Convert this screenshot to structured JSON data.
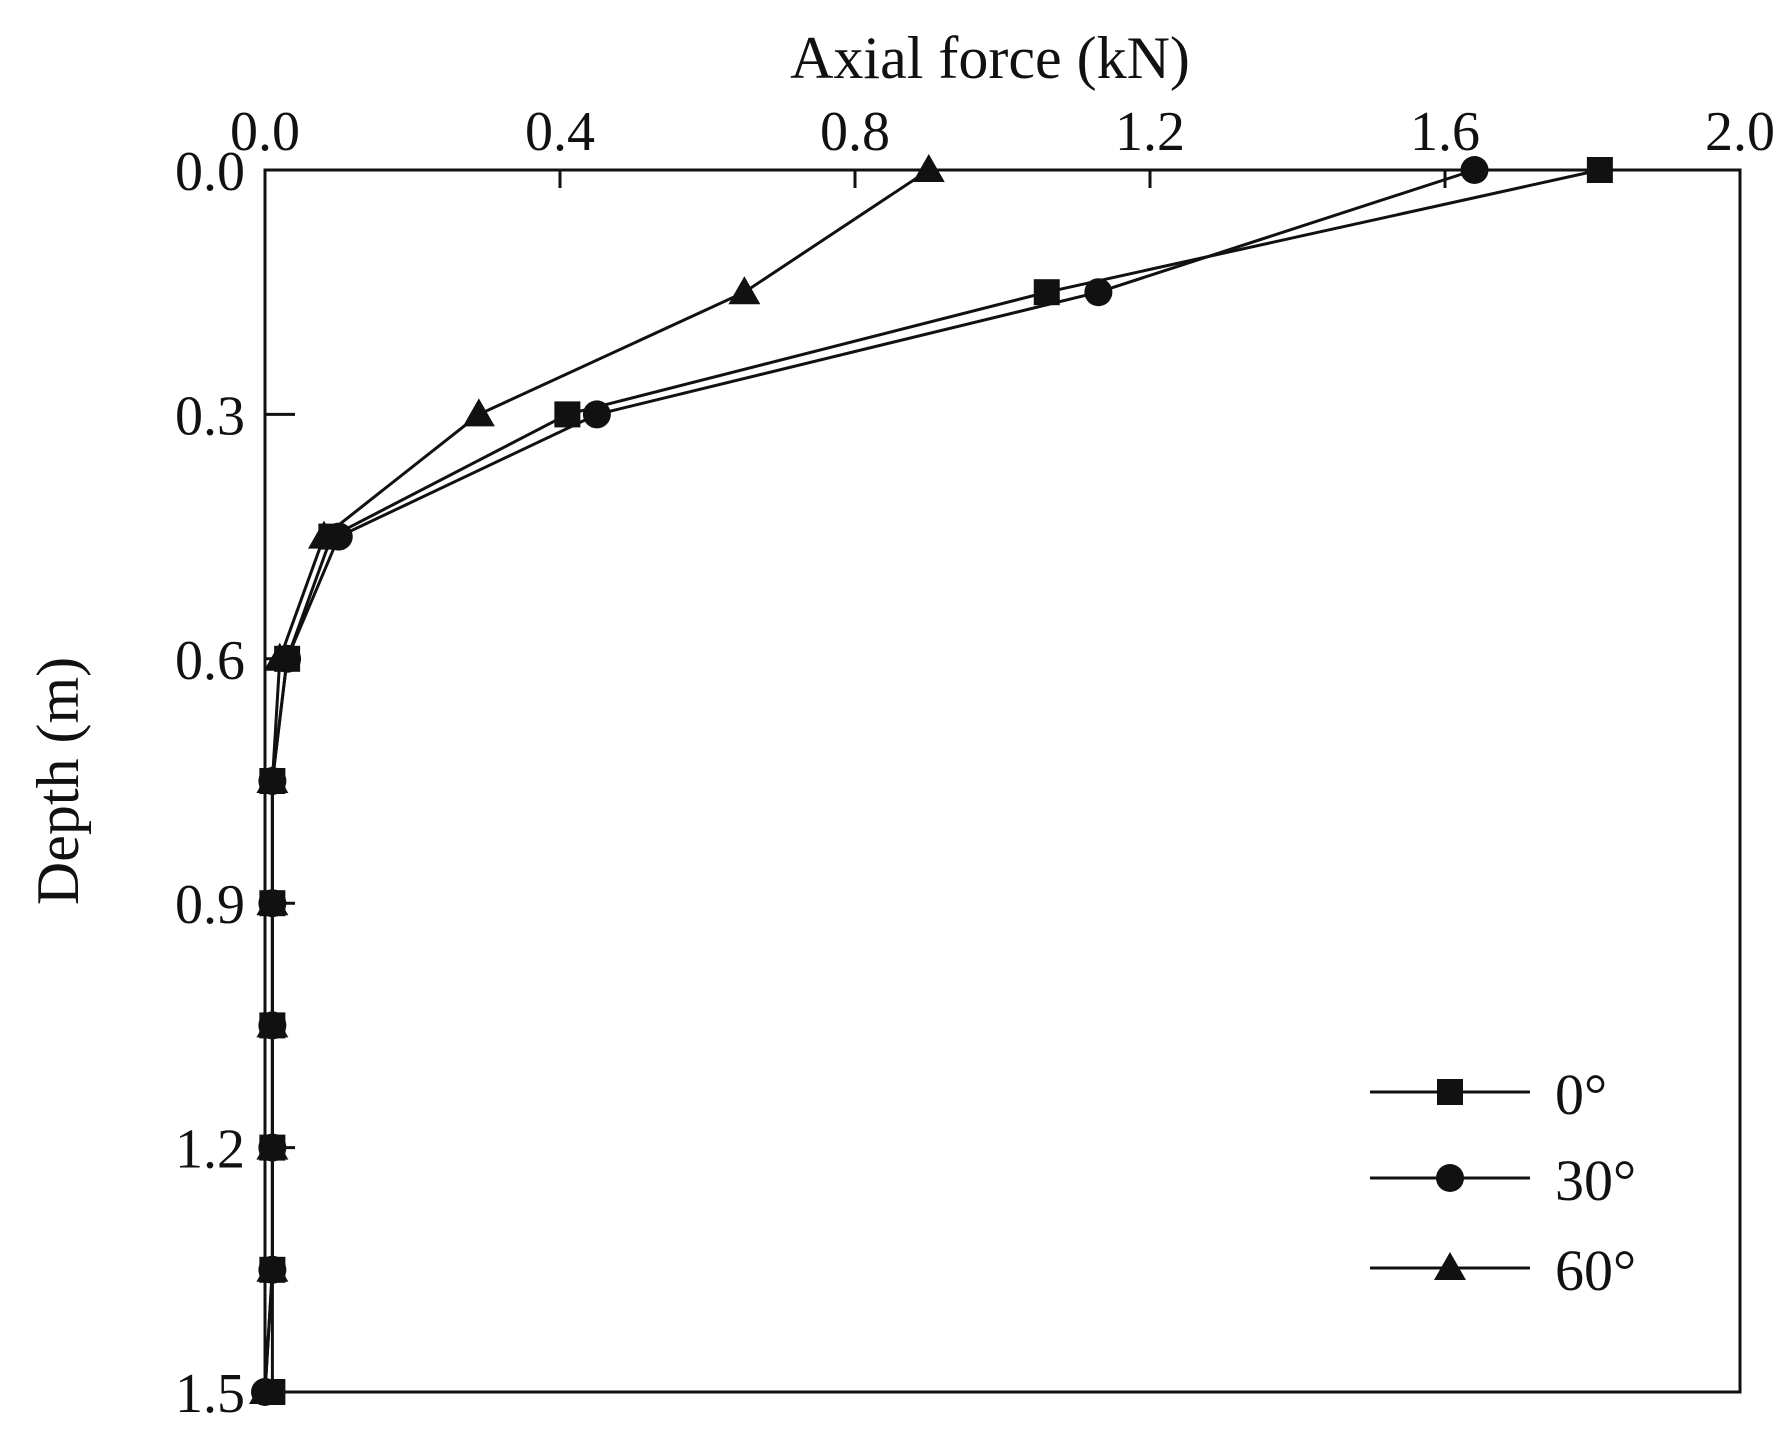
{
  "chart_data": {
    "type": "line",
    "title": "",
    "xlabel": "Axial force (kN)",
    "ylabel": "Depth (m)",
    "xlim": [
      0.0,
      2.0
    ],
    "ylim": [
      0.0,
      1.5
    ],
    "y_inverted": true,
    "x_axis_position": "top",
    "xticks": [
      "0.0",
      "0.4",
      "0.8",
      "1.2",
      "1.6",
      "2.0"
    ],
    "yticks": [
      "0.0",
      "0.3",
      "0.6",
      "0.9",
      "1.2",
      "1.5"
    ],
    "grid": false,
    "legend_position": "bottom-right",
    "line_color": "#111111",
    "series": [
      {
        "name": "0°",
        "marker": "square",
        "points": [
          [
            1.81,
            0.0
          ],
          [
            1.06,
            0.15
          ],
          [
            0.41,
            0.3
          ],
          [
            0.09,
            0.45
          ],
          [
            0.03,
            0.6
          ],
          [
            0.01,
            0.75
          ],
          [
            0.01,
            0.9
          ],
          [
            0.01,
            1.05
          ],
          [
            0.01,
            1.2
          ],
          [
            0.01,
            1.35
          ],
          [
            0.01,
            1.5
          ]
        ]
      },
      {
        "name": "30°",
        "marker": "circle",
        "points": [
          [
            1.64,
            0.0
          ],
          [
            1.13,
            0.15
          ],
          [
            0.45,
            0.3
          ],
          [
            0.1,
            0.45
          ],
          [
            0.03,
            0.6
          ],
          [
            0.01,
            0.75
          ],
          [
            0.01,
            0.9
          ],
          [
            0.01,
            1.05
          ],
          [
            0.01,
            1.2
          ],
          [
            0.01,
            1.35
          ],
          [
            0.0,
            1.5
          ]
        ]
      },
      {
        "name": "60°",
        "marker": "triangle",
        "points": [
          [
            0.9,
            0.0
          ],
          [
            0.65,
            0.15
          ],
          [
            0.29,
            0.3
          ],
          [
            0.08,
            0.45
          ],
          [
            0.02,
            0.6
          ],
          [
            0.01,
            0.75
          ],
          [
            0.01,
            0.9
          ],
          [
            0.01,
            1.05
          ],
          [
            0.01,
            1.2
          ],
          [
            0.01,
            1.35
          ],
          [
            0.0,
            1.5
          ]
        ]
      }
    ]
  }
}
